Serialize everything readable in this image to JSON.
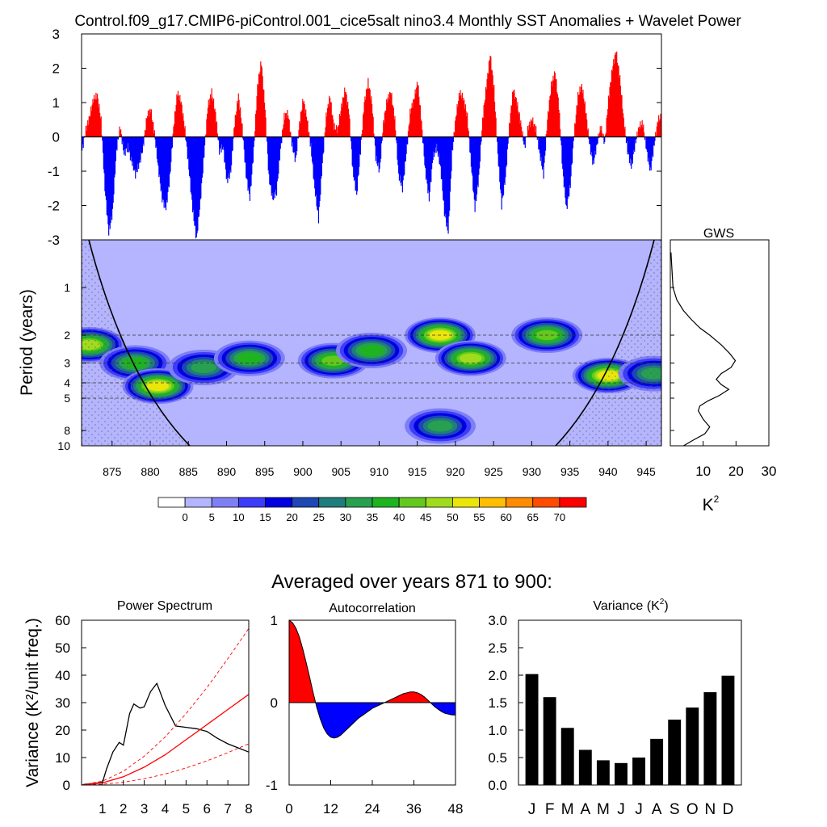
{
  "title": "Control.f09_g17.CMIP6-piControl.001_cice5salt nino3.4 Monthly SST Anomalies + Wavelet Power",
  "chart_data": [
    {
      "id": "anomaly",
      "type": "area",
      "title": "Control.f09_g17.CMIP6-piControl.001_cice5salt nino3.4 Monthly SST Anomalies + Wavelet Power",
      "ylim": [
        -3,
        3
      ],
      "yticks": [
        "3",
        "2",
        "1",
        "0",
        "-1",
        "-2",
        "-3"
      ],
      "xlim": [
        871,
        947
      ],
      "positive_color": "#ff0000",
      "negative_color": "#0000ff",
      "series": [
        {
          "x": [
            871.0,
            871.5,
            872.0,
            872.5,
            873.0,
            873.5,
            874.0,
            874.5,
            875.0,
            875.5,
            876.0,
            876.5,
            877.0,
            877.5,
            878.0,
            878.5,
            879.0,
            879.5,
            880.0,
            880.5,
            881.0,
            881.5,
            882.0,
            882.5,
            883.0,
            883.5,
            884.0,
            884.5,
            885.0,
            885.5,
            886.0,
            886.5,
            887.0,
            887.5,
            888.0,
            888.5,
            889.0,
            889.5,
            890.0,
            890.5,
            891.0,
            891.5,
            892.0,
            892.5,
            893.0,
            893.5,
            894.0,
            894.5,
            895.0,
            895.5,
            896.0,
            896.5,
            897.0,
            897.5,
            898.0,
            898.5,
            899.0,
            899.5,
            900.0,
            900.5,
            901.0,
            901.5,
            902.0,
            902.5,
            903.0,
            903.5,
            904.0,
            904.5,
            905.0,
            905.5,
            906.0,
            906.5,
            907.0,
            907.5,
            908.0,
            908.5,
            909.0,
            909.5,
            910.0,
            910.5,
            911.0,
            911.5,
            912.0,
            912.5,
            913.0,
            913.5,
            914.0,
            914.5,
            915.0,
            915.5,
            916.0,
            916.5,
            917.0,
            917.5,
            918.0,
            918.5,
            919.0,
            919.5,
            920.0,
            920.5,
            921.0,
            921.5,
            922.0,
            922.5,
            923.0,
            923.5,
            924.0,
            924.5,
            925.0,
            925.5,
            926.0,
            926.5,
            927.0,
            927.5,
            928.0,
            928.5,
            929.0,
            929.5,
            930.0,
            930.5,
            931.0,
            931.5,
            932.0,
            932.5,
            933.0,
            933.5,
            934.0,
            934.5,
            935.0,
            935.5,
            936.0,
            936.5,
            937.0,
            937.5,
            938.0,
            938.5,
            939.0,
            939.5,
            940.0,
            940.5,
            941.0,
            941.5,
            942.0,
            942.5,
            943.0,
            943.5,
            944.0,
            944.5,
            945.0,
            945.5,
            946.0,
            946.5,
            947.0
          ],
          "y": [
            -0.4,
            0.2,
            0.6,
            1.1,
            1.2,
            0.5,
            -1.5,
            -2.8,
            -2.2,
            -0.4,
            0.3,
            -0.5,
            -0.3,
            -0.7,
            -1.1,
            -0.8,
            -0.3,
            0.6,
            0.8,
            0.1,
            -0.9,
            -1.8,
            -2.1,
            -1.2,
            0.3,
            1.3,
            1.0,
            0.2,
            -0.9,
            -2.1,
            -3.0,
            -1.9,
            -0.5,
            0.9,
            1.3,
            0.7,
            -0.4,
            -0.3,
            -1.3,
            -1.0,
            0.4,
            1.2,
            0.3,
            -1.1,
            -1.8,
            -0.4,
            1.5,
            2.2,
            0.8,
            -1.2,
            -1.8,
            -1.6,
            -0.4,
            0.6,
            0.7,
            -0.2,
            -0.7,
            0.4,
            1.1,
            0.5,
            -0.3,
            -1.5,
            -2.4,
            -0.8,
            0.6,
            1.2,
            0.3,
            0.2,
            0.9,
            1.4,
            0.7,
            -1.0,
            -1.7,
            -0.4,
            1.0,
            1.6,
            1.0,
            -0.6,
            -1.0,
            0.4,
            1.1,
            1.3,
            0.5,
            -1.1,
            -1.5,
            -0.5,
            0.7,
            1.1,
            1.6,
            0.4,
            -1.0,
            -1.8,
            -0.6,
            -0.3,
            -0.9,
            -2.2,
            -2.8,
            -0.5,
            0.6,
            1.3,
            1.1,
            0.6,
            -0.8,
            -2.1,
            -1.2,
            0.5,
            1.5,
            2.4,
            1.4,
            -0.5,
            -2.0,
            -1.2,
            0.3,
            1.4,
            1.0,
            0.4,
            -0.3,
            0.3,
            0.5,
            0.2,
            -0.5,
            -1.1,
            0.5,
            1.5,
            1.9,
            0.9,
            -1.0,
            -2.1,
            -1.4,
            0.1,
            1.2,
            1.5,
            0.8,
            -0.2,
            -0.8,
            -0.2,
            0.3,
            -0.2,
            1.1,
            2.0,
            2.5,
            1.7,
            0.5,
            -0.4,
            -0.9,
            -0.2,
            0.3,
            0.4,
            -0.4,
            -1.0,
            -0.2,
            0.5,
            0.6
          ]
        }
      ]
    },
    {
      "id": "wavelet",
      "type": "heatmap",
      "ylabel": "Period (years)",
      "yticks": [
        "1",
        "2",
        "3",
        "4",
        "5",
        "8",
        "10"
      ],
      "xticks": [
        "875",
        "880",
        "885",
        "890",
        "895",
        "900",
        "905",
        "910",
        "915",
        "920",
        "925",
        "930",
        "935",
        "940",
        "945"
      ],
      "xlim": [
        871,
        947
      ],
      "ylim_period": [
        0.5,
        10
      ],
      "reference_periods": [
        2,
        3,
        4,
        5
      ],
      "colorbar": {
        "labels": [
          "0",
          "5",
          "10",
          "15",
          "20",
          "25",
          "30",
          "35",
          "40",
          "45",
          "50",
          "55",
          "60",
          "65",
          "70"
        ],
        "colors": [
          "#ffffff",
          "#b4b4ff",
          "#7f7ff5",
          "#3c3cfa",
          "#0000e1",
          "#1e46b4",
          "#1e7d7d",
          "#28a050",
          "#1eb41e",
          "#64c81e",
          "#a0dc1e",
          "#ebe60a",
          "#ffbe00",
          "#ff8c00",
          "#ff4b00",
          "#ff0000"
        ]
      },
      "features": [
        {
          "year": 872,
          "period": 2.3,
          "power": 45
        },
        {
          "year": 878,
          "period": 3.0,
          "power": 35
        },
        {
          "year": 881,
          "period": 4.2,
          "power": 50
        },
        {
          "year": 887,
          "period": 3.2,
          "power": 30
        },
        {
          "year": 893,
          "period": 2.8,
          "power": 35
        },
        {
          "year": 904,
          "period": 2.9,
          "power": 40
        },
        {
          "year": 909,
          "period": 2.5,
          "power": 35
        },
        {
          "year": 918,
          "period": 2.0,
          "power": 50
        },
        {
          "year": 918,
          "period": 7.5,
          "power": 30
        },
        {
          "year": 922,
          "period": 2.8,
          "power": 45
        },
        {
          "year": 932,
          "period": 2.0,
          "power": 40
        },
        {
          "year": 940,
          "period": 3.6,
          "power": 50
        },
        {
          "year": 946,
          "period": 3.5,
          "power": 30
        }
      ]
    },
    {
      "id": "gws",
      "type": "line",
      "title": "GWS",
      "xlabel": "K2",
      "xticks": [
        "10",
        "20",
        "30"
      ],
      "xlim": [
        0,
        30
      ],
      "x": [
        0.2,
        0.8,
        2.0,
        4.0,
        6.5,
        9.0,
        12.0,
        15.5,
        18.0,
        19.8,
        18.5,
        15.5,
        14.0,
        15.5,
        17.8,
        15.0,
        11.5,
        9.0,
        8.5,
        10.0,
        12.0,
        10.5,
        7.0,
        4.0
      ],
      "period": [
        0.6,
        1.0,
        1.2,
        1.4,
        1.6,
        1.8,
        2.0,
        2.3,
        2.6,
        2.9,
        3.2,
        3.5,
        3.8,
        4.1,
        4.4,
        4.8,
        5.2,
        5.6,
        6.0,
        6.8,
        7.6,
        8.4,
        9.2,
        10.0
      ]
    },
    {
      "id": "power_spectrum",
      "type": "line",
      "title": "Power Spectrum",
      "ylabel": "Variance (K²/unit freq.)",
      "xticks": [
        "1",
        "2",
        "3",
        "4",
        "5",
        "6",
        "7",
        "8"
      ],
      "yticks": [
        "0",
        "10",
        "20",
        "30",
        "40",
        "50",
        "60"
      ],
      "xlim": [
        0,
        8
      ],
      "ylim": [
        0,
        60
      ],
      "series": [
        {
          "color": "#000000",
          "style": "solid",
          "x": [
            0.1,
            0.5,
            1.0,
            1.2,
            1.5,
            1.8,
            2.0,
            2.3,
            2.5,
            2.8,
            3.0,
            3.3,
            3.6,
            4.0,
            4.5,
            5.0,
            5.5,
            6.0,
            6.5,
            7.0,
            7.5,
            8.0
          ],
          "y": [
            0.2,
            0.5,
            1.0,
            6.0,
            12.0,
            15.5,
            14.5,
            26.0,
            29.5,
            28.0,
            28.5,
            34.0,
            37.0,
            29.0,
            21.5,
            21.0,
            20.5,
            19.5,
            17.0,
            15.0,
            13.5,
            12.0
          ]
        },
        {
          "color": "#ff0000",
          "style": "solid",
          "x": [
            0,
            1,
            2,
            3,
            4,
            5,
            6,
            7,
            8
          ],
          "y": [
            0,
            0.8,
            3.0,
            6.5,
            11.0,
            16.5,
            22.0,
            27.5,
            33.0
          ]
        },
        {
          "color": "#ff0000",
          "style": "dashed",
          "x": [
            0,
            1,
            2,
            3,
            4,
            5,
            6,
            7,
            8
          ],
          "y": [
            0,
            1.4,
            5.0,
            10.5,
            17.5,
            26.0,
            35.5,
            46.0,
            57.0
          ]
        },
        {
          "color": "#ff0000",
          "style": "dashed",
          "x": [
            0,
            1,
            2,
            3,
            4,
            5,
            6,
            7,
            8
          ],
          "y": [
            0,
            0.3,
            1.0,
            2.3,
            4.0,
            6.2,
            8.8,
            11.8,
            15.0
          ]
        }
      ]
    },
    {
      "id": "autocorrelation",
      "type": "area",
      "title": "Autocorrelation",
      "xticks": [
        "0",
        "12",
        "24",
        "36",
        "48"
      ],
      "yticks": [
        "1",
        "0",
        "-1"
      ],
      "xlim": [
        0,
        48
      ],
      "ylim": [
        -1,
        1
      ],
      "positive_color": "#ff0000",
      "negative_color": "#0000ff",
      "x": [
        0,
        1,
        2,
        3,
        4,
        5,
        6,
        7,
        8,
        9,
        10,
        11,
        12,
        13,
        14,
        15,
        16,
        17,
        18,
        19,
        20,
        21,
        22,
        23,
        24,
        25,
        26,
        27,
        28,
        29,
        30,
        31,
        32,
        33,
        34,
        35,
        36,
        37,
        38,
        39,
        40,
        41,
        42,
        43,
        44,
        45,
        46,
        47,
        48
      ],
      "y": [
        1.0,
        0.97,
        0.9,
        0.79,
        0.64,
        0.47,
        0.29,
        0.11,
        -0.06,
        -0.2,
        -0.31,
        -0.38,
        -0.42,
        -0.43,
        -0.42,
        -0.39,
        -0.35,
        -0.31,
        -0.27,
        -0.23,
        -0.19,
        -0.16,
        -0.13,
        -0.1,
        -0.07,
        -0.05,
        -0.03,
        -0.01,
        0.01,
        0.03,
        0.05,
        0.07,
        0.09,
        0.11,
        0.12,
        0.13,
        0.13,
        0.12,
        0.1,
        0.07,
        0.03,
        -0.01,
        -0.05,
        -0.08,
        -0.11,
        -0.13,
        -0.14,
        -0.15,
        -0.15
      ]
    },
    {
      "id": "variance",
      "type": "bar",
      "title": "Variance (K²)",
      "categories": [
        "J",
        "F",
        "M",
        "A",
        "M",
        "J",
        "J",
        "A",
        "S",
        "O",
        "N",
        "D"
      ],
      "values": [
        2.02,
        1.6,
        1.04,
        0.64,
        0.45,
        0.4,
        0.5,
        0.84,
        1.19,
        1.41,
        1.69,
        1.99
      ],
      "yticks": [
        "0.0",
        "0.5",
        "1.0",
        "1.5",
        "2.0",
        "2.5",
        "3.0"
      ],
      "ylim": [
        0,
        3
      ]
    }
  ],
  "bottom_heading": "Averaged over years 871 to 900:"
}
